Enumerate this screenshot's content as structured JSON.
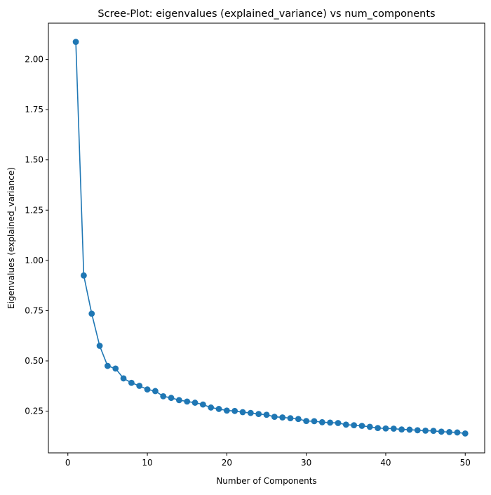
{
  "chart_data": {
    "type": "line",
    "title": "Scree-Plot: eigenvalues (explained_variance) vs num_components",
    "xlabel": "Number of Components",
    "ylabel": "Eigenvalues (explained_variance)",
    "xlim": [
      -2.45,
      52.45
    ],
    "ylim": [
      0.0425,
      2.18
    ],
    "x_ticks": [
      0,
      10,
      20,
      30,
      40,
      50
    ],
    "x_tick_labels": [
      "0",
      "10",
      "20",
      "30",
      "40",
      "50"
    ],
    "y_ticks": [
      0.25,
      0.5,
      0.75,
      1.0,
      1.25,
      1.5,
      1.75,
      2.0
    ],
    "y_tick_labels": [
      "0.25",
      "0.50",
      "0.75",
      "1.00",
      "1.25",
      "1.50",
      "1.75",
      "2.00"
    ],
    "grid": false,
    "marker": "circle",
    "color": "#1f77b4",
    "series": [
      {
        "x": [
          1,
          2,
          3,
          4,
          5,
          6,
          7,
          8,
          9,
          10,
          11,
          12,
          13,
          14,
          15,
          16,
          17,
          18,
          19,
          20,
          21,
          22,
          23,
          24,
          25,
          26,
          27,
          28,
          29,
          30,
          31,
          32,
          33,
          34,
          35,
          36,
          37,
          38,
          39,
          40,
          41,
          42,
          43,
          44,
          45,
          46,
          47,
          48,
          49,
          50
        ],
        "values": [
          2.087,
          0.925,
          0.735,
          0.575,
          0.475,
          0.462,
          0.413,
          0.391,
          0.376,
          0.358,
          0.35,
          0.324,
          0.316,
          0.305,
          0.298,
          0.292,
          0.283,
          0.268,
          0.261,
          0.253,
          0.251,
          0.245,
          0.241,
          0.236,
          0.232,
          0.222,
          0.219,
          0.215,
          0.211,
          0.201,
          0.2,
          0.195,
          0.193,
          0.191,
          0.183,
          0.18,
          0.177,
          0.172,
          0.166,
          0.164,
          0.163,
          0.159,
          0.158,
          0.155,
          0.153,
          0.152,
          0.148,
          0.146,
          0.144,
          0.139
        ]
      }
    ]
  }
}
